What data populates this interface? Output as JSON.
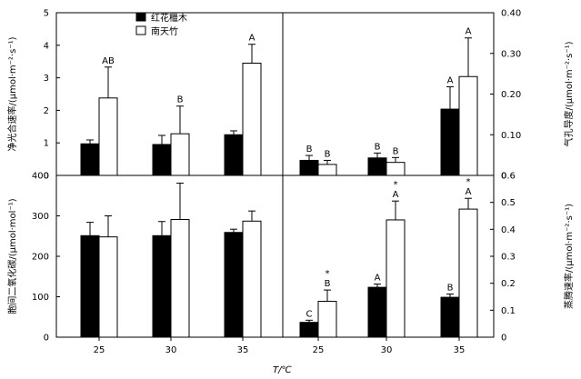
{
  "legend": [
    {
      "name": "红花檵木",
      "color": "#000000"
    },
    {
      "name": "南天竹",
      "color": "#ffffff"
    }
  ],
  "xaxis_title": "T/℃",
  "chart_data": [
    {
      "type": "bar",
      "panel": "top-left",
      "categories": [
        "25",
        "30",
        "35"
      ],
      "ylabel": "净光合速率/(μmol·m⁻²·s⁻¹)",
      "ylim": [
        0,
        5
      ],
      "yticks": [
        0,
        1,
        2,
        3,
        4,
        5
      ],
      "series": [
        {
          "name": "红花檵木",
          "values": [
            0.97,
            0.95,
            1.25
          ],
          "errors": [
            0.12,
            0.28,
            0.12
          ]
        },
        {
          "name": "南天竹",
          "values": [
            2.38,
            1.28,
            3.45
          ],
          "errors": [
            0.95,
            0.85,
            0.58
          ]
        }
      ],
      "annotations": [
        [
          "",
          "AB"
        ],
        [
          "",
          "B"
        ],
        [
          "",
          "A"
        ]
      ]
    },
    {
      "type": "bar",
      "panel": "top-right",
      "categories": [
        "25",
        "30",
        "35"
      ],
      "ylabel": "气孔导度/(μmol·m⁻²·s⁻¹)",
      "ylim": [
        0,
        0.4
      ],
      "yticks": [
        "0",
        "0.10",
        "0.20",
        "0.30",
        "0.40"
      ],
      "series": [
        {
          "name": "红花檵木",
          "values": [
            0.037,
            0.043,
            0.163
          ],
          "errors": [
            0.012,
            0.012,
            0.055
          ]
        },
        {
          "name": "南天竹",
          "values": [
            0.027,
            0.032,
            0.243
          ],
          "errors": [
            0.01,
            0.012,
            0.095
          ]
        }
      ],
      "annotations": [
        [
          "B",
          "B"
        ],
        [
          "B",
          "B"
        ],
        [
          "A",
          "A"
        ]
      ]
    },
    {
      "type": "bar",
      "panel": "bottom-left",
      "categories": [
        "25",
        "30",
        "35"
      ],
      "ylabel": "胞间二氧化碳/(μmol·mol⁻¹)",
      "ylim": [
        0,
        400
      ],
      "yticks": [
        0,
        100,
        200,
        300,
        400
      ],
      "series": [
        {
          "name": "红花檵木",
          "values": [
            251,
            251,
            259
          ],
          "errors": [
            33,
            35,
            8
          ]
        },
        {
          "name": "南天竹",
          "values": [
            248,
            291,
            287
          ],
          "errors": [
            52,
            90,
            25
          ]
        }
      ],
      "annotations": [
        [
          "",
          ""
        ],
        [
          "",
          ""
        ],
        [
          "",
          ""
        ]
      ]
    },
    {
      "type": "bar",
      "panel": "bottom-right",
      "categories": [
        "25",
        "30",
        "35"
      ],
      "ylabel": "蒸腾速率/(μmol·m⁻²·s⁻¹)",
      "ylim": [
        0,
        0.6
      ],
      "yticks": [
        "0",
        "0.1",
        "0.2",
        "0.3",
        "0.4",
        "0.5",
        "0.6"
      ],
      "series": [
        {
          "name": "红花檵木",
          "values": [
            0.055,
            0.185,
            0.148
          ],
          "errors": [
            0.008,
            0.012,
            0.012
          ]
        },
        {
          "name": "南天竹",
          "values": [
            0.133,
            0.435,
            0.475
          ],
          "errors": [
            0.042,
            0.07,
            0.04
          ]
        }
      ],
      "annotations": [
        [
          "C",
          "*\nB"
        ],
        [
          "A",
          "*\nA"
        ],
        [
          "B",
          "*\nA"
        ]
      ]
    }
  ]
}
